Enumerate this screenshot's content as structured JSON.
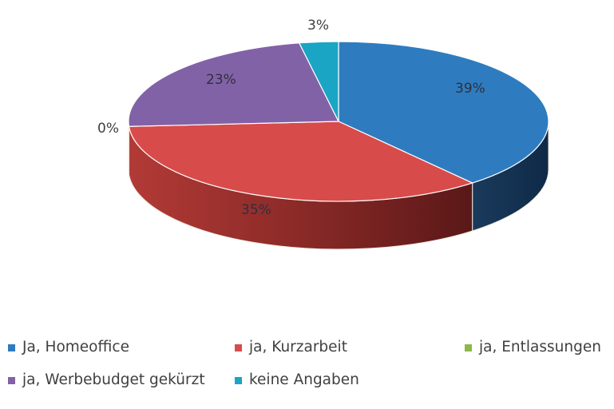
{
  "chart_data": {
    "type": "pie",
    "style": "3d",
    "title": "",
    "categories": [
      "Ja, Homeoffice",
      "ja, Kurzarbeit",
      "ja, Entlassungen",
      "ja, Werbebudget gekürzt",
      "keine Angaben"
    ],
    "values": [
      39,
      35,
      0,
      23,
      3
    ],
    "unit": "%",
    "data_labels": [
      "39%",
      "35%",
      "0%",
      "23%",
      "3%"
    ],
    "colors": [
      "#2e7cbf",
      "#d84b4b",
      "#8db84a",
      "#8262a6",
      "#1aa5c4"
    ],
    "legend_position": "bottom"
  },
  "labels": {
    "homeoffice": "39%",
    "kurzarbeit": "35%",
    "entlassungen": "0%",
    "werbebudget": "23%",
    "keine": "3%"
  },
  "legend": {
    "items": [
      {
        "label": "Ja, Homeoffice",
        "color": "#2e7cbf"
      },
      {
        "label": "ja, Kurzarbeit",
        "color": "#d84b4b"
      },
      {
        "label": "ja, Entlassungen",
        "color": "#8db84a"
      },
      {
        "label": "ja, Werbebudget gekürzt",
        "color": "#8262a6"
      },
      {
        "label": "keine Angaben",
        "color": "#1aa5c4"
      }
    ]
  }
}
